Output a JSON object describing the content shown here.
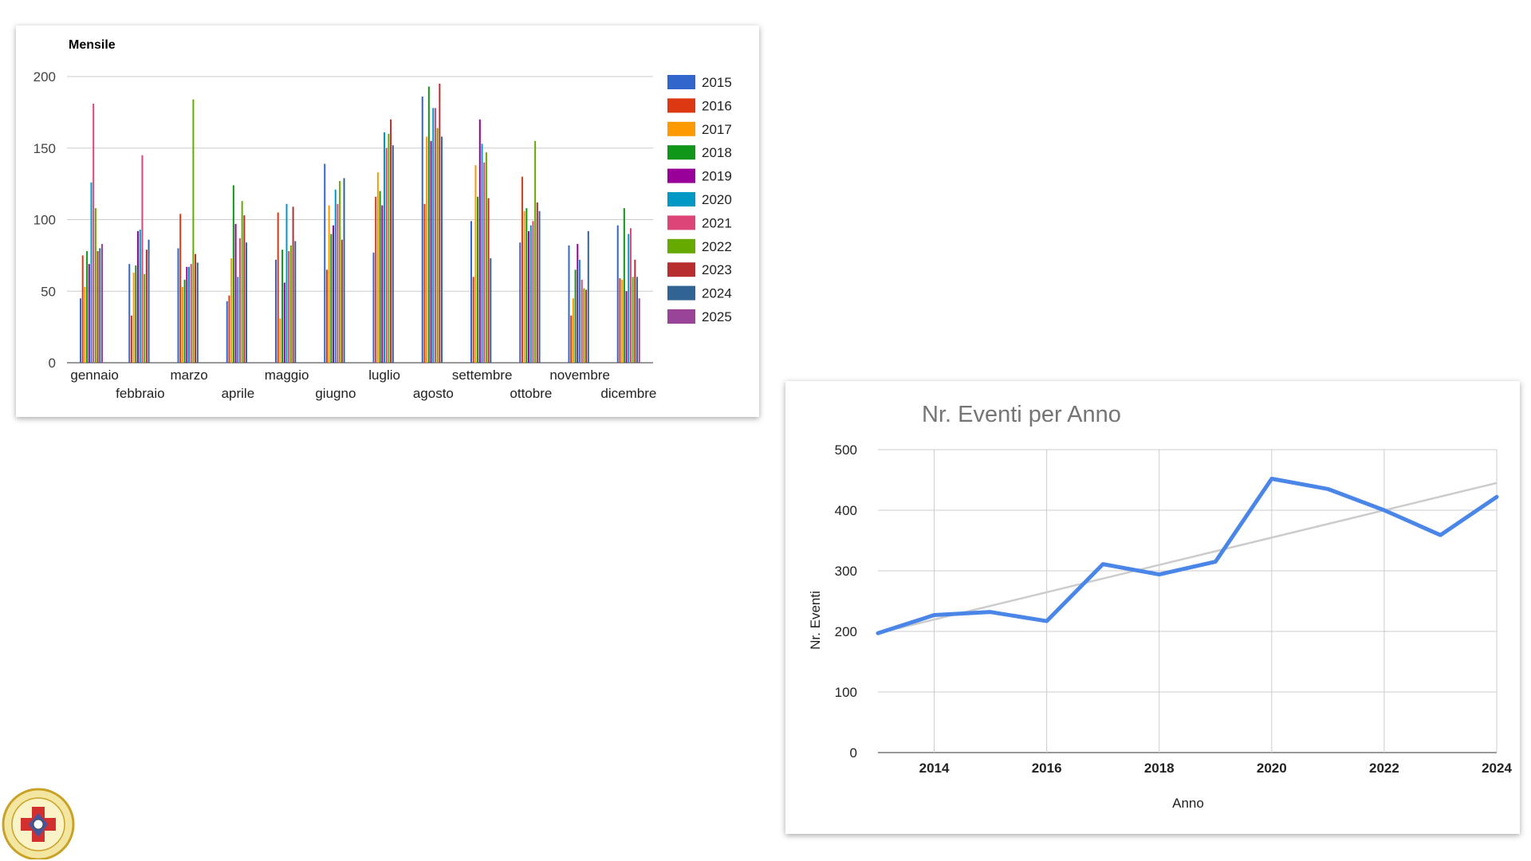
{
  "chart_data": [
    {
      "type": "bar",
      "title": "Mensile",
      "xlabel": "",
      "ylabel": "",
      "ylim": [
        0,
        200
      ],
      "yticks": [
        0,
        50,
        100,
        150,
        200
      ],
      "grid": true,
      "legend": "right",
      "categories": [
        "gennaio",
        "febbraio",
        "marzo",
        "aprile",
        "maggio",
        "giugno",
        "luglio",
        "agosto",
        "settembre",
        "ottobre",
        "novembre",
        "dicembre"
      ],
      "series": [
        {
          "name": "2015",
          "color": "#3366cc",
          "values": [
            45,
            69,
            80,
            43,
            72,
            139,
            77,
            186,
            99,
            84,
            82,
            96
          ]
        },
        {
          "name": "2016",
          "color": "#dc3912",
          "values": [
            75,
            33,
            104,
            47,
            105,
            65,
            116,
            111,
            60,
            130,
            33,
            59
          ]
        },
        {
          "name": "2017",
          "color": "#ff9900",
          "values": [
            53,
            63,
            53,
            73,
            31,
            110,
            133,
            158,
            138,
            106,
            45,
            58
          ]
        },
        {
          "name": "2018",
          "color": "#109618",
          "values": [
            78,
            68,
            58,
            124,
            79,
            90,
            120,
            193,
            116,
            108,
            65,
            108
          ]
        },
        {
          "name": "2019",
          "color": "#990099",
          "values": [
            69,
            92,
            67,
            97,
            56,
            96,
            110,
            155,
            170,
            92,
            83,
            50
          ]
        },
        {
          "name": "2020",
          "color": "#0099c6",
          "values": [
            126,
            93,
            67,
            60,
            111,
            121,
            161,
            178,
            153,
            96,
            72,
            90
          ]
        },
        {
          "name": "2021",
          "color": "#dd4477",
          "values": [
            181,
            145,
            69,
            87,
            78,
            111,
            150,
            178,
            140,
            99,
            58,
            94
          ]
        },
        {
          "name": "2022",
          "color": "#66aa00",
          "values": [
            108,
            62,
            184,
            113,
            82,
            127,
            160,
            164,
            147,
            155,
            52,
            60
          ]
        },
        {
          "name": "2023",
          "color": "#b82e2e",
          "values": [
            78,
            79,
            76,
            103,
            109,
            86,
            170,
            195,
            115,
            112,
            51,
            72
          ]
        },
        {
          "name": "2024",
          "color": "#316395",
          "values": [
            80,
            86,
            70,
            84,
            85,
            129,
            152,
            158,
            73,
            106,
            92,
            60
          ]
        },
        {
          "name": "2025",
          "color": "#994499",
          "values": [
            83,
            0,
            0,
            0,
            0,
            0,
            0,
            0,
            0,
            0,
            0,
            45
          ]
        }
      ]
    },
    {
      "type": "line",
      "title": "Nr. Eventi per Anno",
      "xlabel": "Anno",
      "ylabel": "Nr. Eventi",
      "xlim": [
        2013,
        2024
      ],
      "ylim": [
        0,
        500
      ],
      "xticks": [
        2014,
        2016,
        2018,
        2020,
        2022,
        2024
      ],
      "yticks": [
        0,
        100,
        200,
        300,
        400,
        500
      ],
      "grid": true,
      "x": [
        2013,
        2014,
        2015,
        2016,
        2017,
        2018,
        2019,
        2020,
        2021,
        2022,
        2023,
        2024
      ],
      "series": [
        {
          "color": "#4a86e8",
          "values": [
            197,
            227,
            232,
            217,
            311,
            294,
            315,
            452,
            435,
            400,
            359,
            422
          ]
        },
        {
          "color": "#cccccc",
          "trendline": [
            197,
            445
          ]
        }
      ]
    }
  ]
}
